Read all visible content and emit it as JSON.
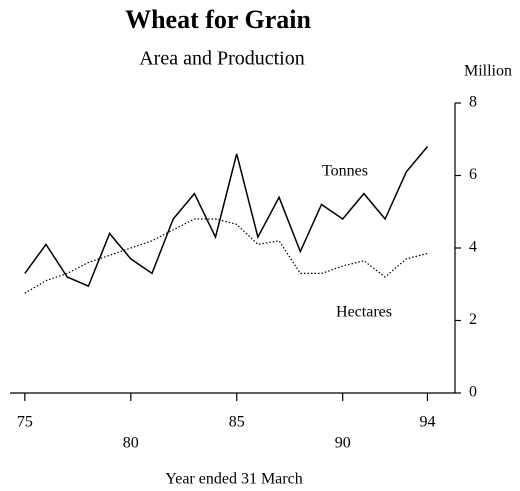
{
  "chart_data": {
    "type": "line",
    "title": "Wheat for Grain",
    "subtitle": "Area and Production",
    "y_label": "Million",
    "x_label": "Year ended 31 March",
    "x": [
      75,
      76,
      77,
      78,
      79,
      80,
      81,
      82,
      83,
      84,
      85,
      86,
      87,
      88,
      89,
      90,
      91,
      92,
      93,
      94
    ],
    "series": [
      {
        "name": "Tonnes",
        "color": "#000000",
        "style": "solid",
        "values": [
          3.3,
          4.1,
          3.2,
          2.95,
          4.4,
          3.7,
          3.3,
          4.8,
          5.5,
          4.3,
          6.6,
          4.3,
          5.4,
          3.9,
          5.2,
          4.8,
          5.5,
          4.8,
          6.1,
          6.8
        ]
      },
      {
        "name": "Hectares",
        "color": "#000000",
        "style": "dotted",
        "values": [
          2.75,
          3.1,
          3.3,
          3.6,
          3.8,
          4.0,
          4.2,
          4.5,
          4.8,
          4.8,
          4.65,
          4.1,
          4.2,
          3.3,
          3.3,
          3.5,
          3.65,
          3.2,
          3.7,
          3.85
        ]
      }
    ],
    "xlim": [
      74.3,
      95.3
    ],
    "xticks": [
      75,
      80,
      85,
      90,
      94
    ],
    "ylim": [
      0,
      8
    ],
    "yticks": [
      0,
      2,
      4,
      6,
      8
    ],
    "y_axis_side": "right",
    "grid": false
  }
}
